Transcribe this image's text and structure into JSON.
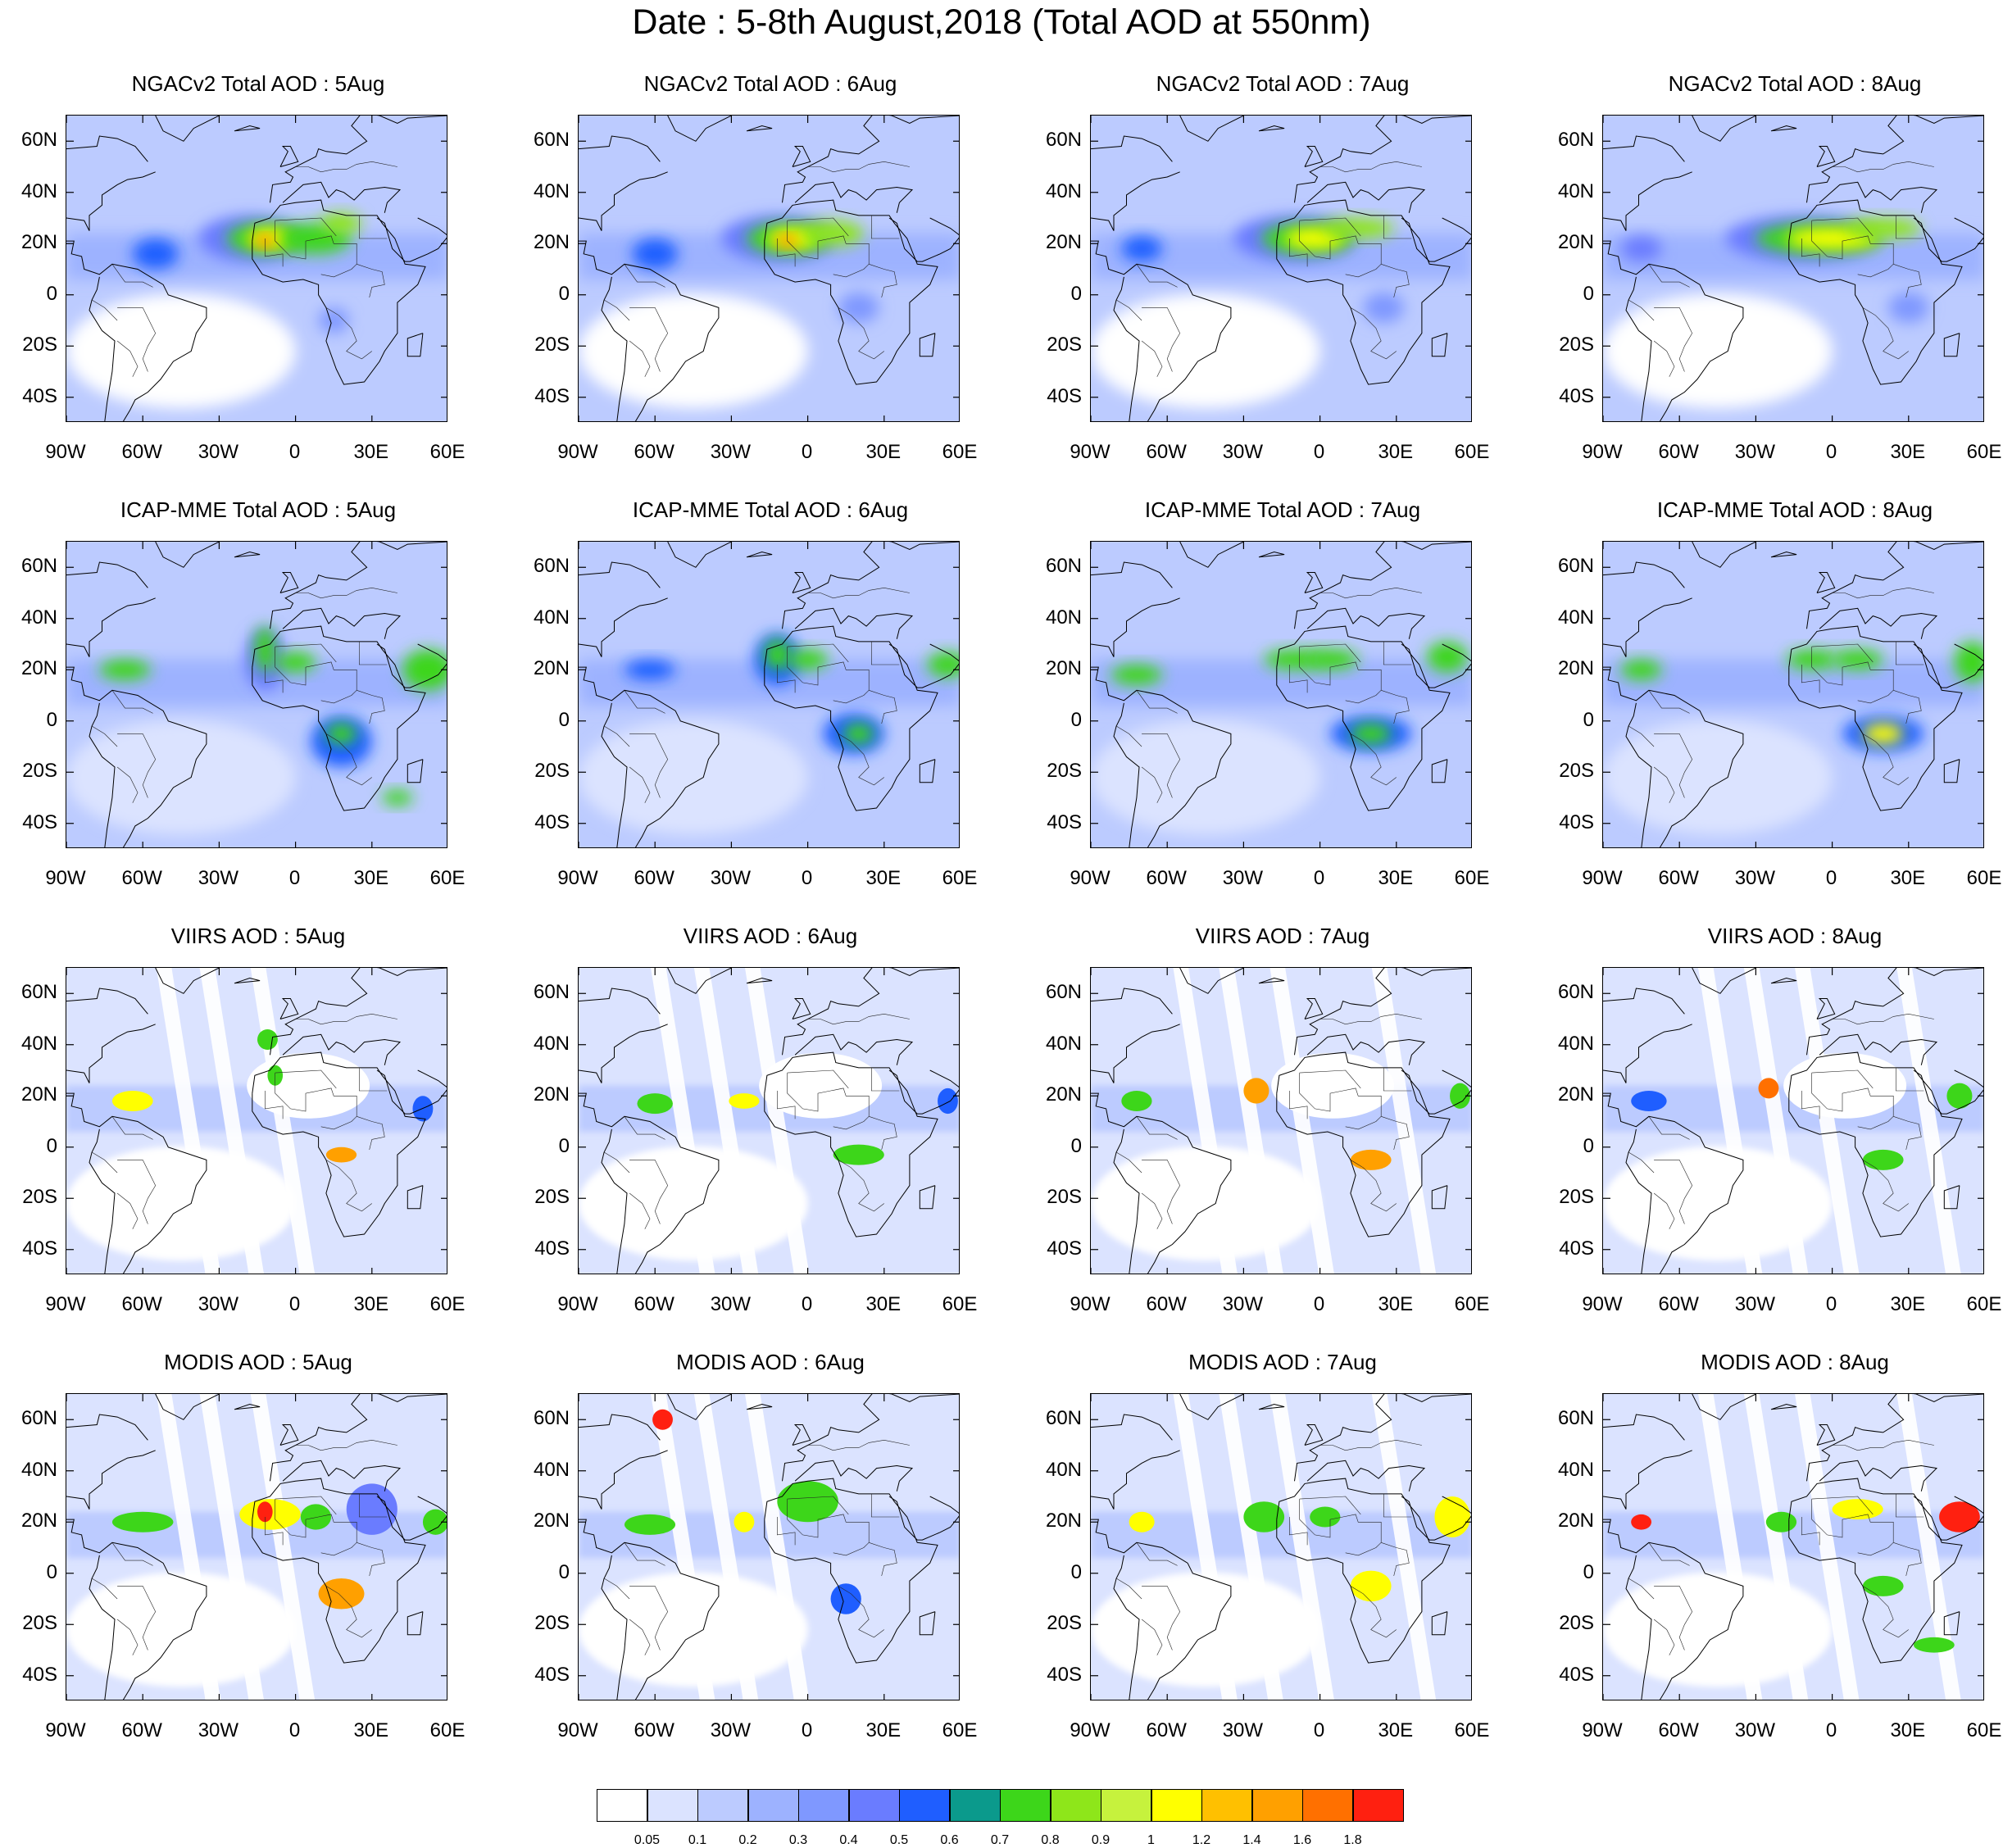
{
  "title": "Date : 5-8th August,2018 (Total AOD at 550nm)",
  "rows": [
    {
      "source": "NGACv2",
      "titles": [
        "NGACv2 Total AOD : 5Aug",
        "NGACv2 Total AOD : 6Aug",
        "NGACv2 Total AOD : 7Aug",
        "NGACv2 Total AOD : 8Aug"
      ]
    },
    {
      "source": "ICAP-MME",
      "titles": [
        "ICAP-MME Total AOD : 5Aug",
        "ICAP-MME Total AOD : 6Aug",
        "ICAP-MME Total AOD : 7Aug",
        "ICAP-MME Total AOD : 8Aug"
      ]
    },
    {
      "source": "VIIRS",
      "titles": [
        "VIIRS AOD : 5Aug",
        "VIIRS AOD : 6Aug",
        "VIIRS AOD : 7Aug",
        "VIIRS AOD : 8Aug"
      ]
    },
    {
      "source": "MODIS",
      "titles": [
        "MODIS AOD : 5Aug",
        "MODIS AOD : 6Aug",
        "MODIS AOD : 7Aug",
        "MODIS AOD : 8Aug"
      ]
    }
  ],
  "map": {
    "lon_range": [
      -90,
      60
    ],
    "lat_range": [
      -50,
      70
    ],
    "x_ticks": [
      {
        "value": -90,
        "label": "90W"
      },
      {
        "value": -60,
        "label": "60W"
      },
      {
        "value": -30,
        "label": "30W"
      },
      {
        "value": 0,
        "label": "0"
      },
      {
        "value": 30,
        "label": "30E"
      },
      {
        "value": 60,
        "label": "60E"
      }
    ],
    "y_ticks": [
      {
        "value": 60,
        "label": "60N"
      },
      {
        "value": 40,
        "label": "40N"
      },
      {
        "value": 20,
        "label": "20N"
      },
      {
        "value": 0,
        "label": "0"
      },
      {
        "value": -20,
        "label": "20S"
      },
      {
        "value": -40,
        "label": "40S"
      }
    ]
  },
  "colorbar": {
    "colors": [
      "#ffffff",
      "#dbe3ff",
      "#bccbff",
      "#9db2ff",
      "#7f98ff",
      "#6a7cff",
      "#1f5eff",
      "#0b9a8c",
      "#3dd61a",
      "#8ee61a",
      "#c6f23d",
      "#ffff00",
      "#ffc000",
      "#ffa000",
      "#ff7000",
      "#ff2010"
    ],
    "labels": [
      "0.05",
      "0.1",
      "0.2",
      "0.3",
      "0.4",
      "0.5",
      "0.6",
      "0.7",
      "0.8",
      "0.9",
      "1",
      "1.2",
      "1.4",
      "1.6",
      "1.8"
    ]
  }
}
